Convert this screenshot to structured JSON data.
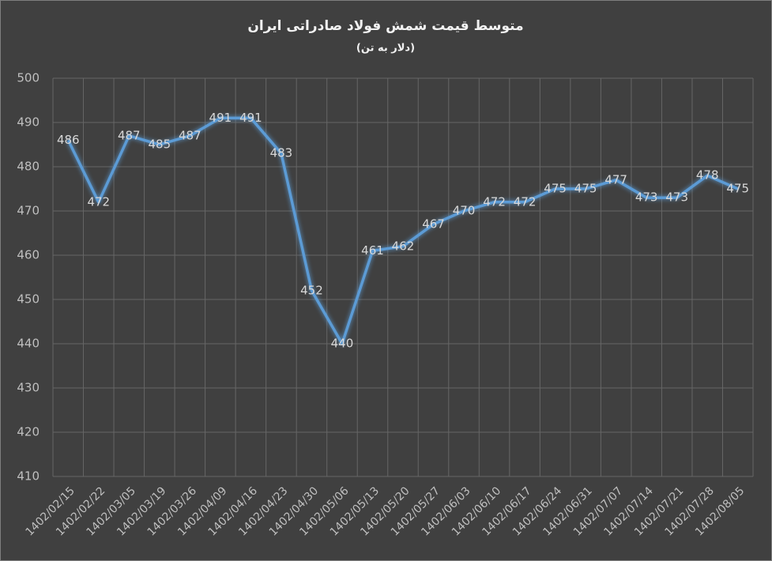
{
  "chart_data": {
    "type": "line",
    "title": "متوسط قیمت شمش فولاد صادراتی ایران",
    "subtitle": "(دلار به تن)",
    "categories": [
      "1402/02/15",
      "1402/02/22",
      "1402/03/05",
      "1402/03/19",
      "1402/03/26",
      "1402/04/09",
      "1402/04/16",
      "1402/04/23",
      "1402/04/30",
      "1402/05/06",
      "1402/05/13",
      "1402/05/20",
      "1402/05/27",
      "1402/06/03",
      "1402/06/10",
      "1402/06/17",
      "1402/06/24",
      "1402/06/31",
      "1402/07/07",
      "1402/07/14",
      "1402/07/21",
      "1402/07/28",
      "1402/08/05"
    ],
    "series": [
      {
        "color": "#5b9bd5",
        "values": [
          486,
          472,
          487,
          485,
          487,
          491,
          491,
          483,
          452,
          440,
          461,
          462,
          467,
          470,
          472,
          472,
          475,
          475,
          477,
          473,
          473,
          478,
          475
        ]
      }
    ],
    "ylim": [
      410,
      500
    ],
    "yticks": [
      410,
      420,
      430,
      440,
      450,
      460,
      470,
      480,
      490,
      500
    ],
    "grid": true,
    "data_labels": true
  }
}
